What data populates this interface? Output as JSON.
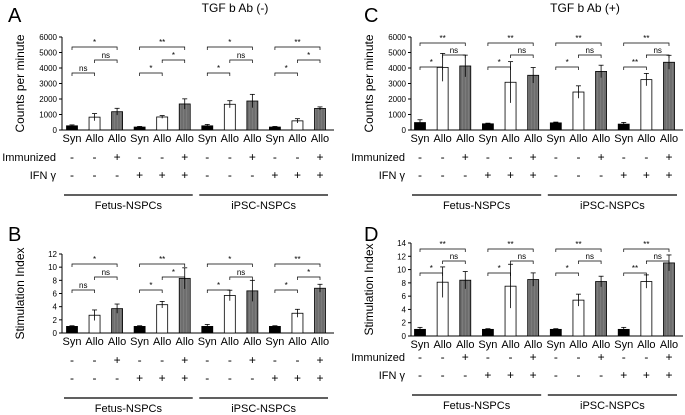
{
  "chart_data": [
    {
      "panel": "A",
      "type": "bar",
      "title": "TGF b Ab (-)",
      "ylabel": "Counts per minute",
      "ylim": [
        0,
        6000
      ],
      "yticks": [
        "0",
        "1000",
        "2000",
        "3000",
        "4000",
        "5000",
        "6000"
      ],
      "categories": [
        "Syn",
        "Allo",
        "Allo",
        "Syn",
        "Allo",
        "Allo",
        "Syn",
        "Allo",
        "Allo",
        "Syn",
        "Allo",
        "Allo"
      ],
      "values": [
        270,
        830,
        1180,
        190,
        840,
        1680,
        270,
        1660,
        1870,
        190,
        590,
        1390
      ],
      "errors": [
        60,
        230,
        220,
        40,
        90,
        330,
        90,
        230,
        430,
        40,
        140,
        100
      ],
      "fills": [
        "black",
        "white",
        "grey",
        "black",
        "white",
        "grey",
        "black",
        "white",
        "grey",
        "black",
        "white",
        "grey"
      ],
      "brackets": [
        {
          "from": 0,
          "to": 1,
          "label": "ns",
          "level": 0
        },
        {
          "from": 1,
          "to": 2,
          "label": "ns",
          "level": 1
        },
        {
          "from": 0,
          "to": 2,
          "label": "*",
          "level": 2
        },
        {
          "from": 3,
          "to": 4,
          "label": "*",
          "level": 0
        },
        {
          "from": 4,
          "to": 5,
          "label": "*",
          "level": 1
        },
        {
          "from": 3,
          "to": 5,
          "label": "**",
          "level": 2
        },
        {
          "from": 6,
          "to": 7,
          "label": "*",
          "level": 0
        },
        {
          "from": 7,
          "to": 8,
          "label": "ns",
          "level": 1
        },
        {
          "from": 6,
          "to": 8,
          "label": "*",
          "level": 2
        },
        {
          "from": 9,
          "to": 10,
          "label": "*",
          "level": 0
        },
        {
          "from": 10,
          "to": 11,
          "label": "*",
          "level": 1
        },
        {
          "from": 9,
          "to": 11,
          "label": "**",
          "level": 2
        }
      ]
    },
    {
      "panel": "C",
      "type": "bar",
      "title": "TGF b Ab (+)",
      "ylabel": "Counts per minute",
      "ylim": [
        0,
        6000
      ],
      "yticks": [
        "0",
        "1000",
        "2000",
        "3000",
        "4000",
        "5000",
        "6000"
      ],
      "categories": [
        "Syn",
        "Allo",
        "Allo",
        "Syn",
        "Allo",
        "Allo",
        "Syn",
        "Allo",
        "Allo",
        "Syn",
        "Allo",
        "Allo"
      ],
      "values": [
        480,
        4040,
        4130,
        400,
        3080,
        3530,
        460,
        2450,
        3780,
        380,
        3250,
        4370
      ],
      "errors": [
        180,
        900,
        700,
        40,
        1330,
        500,
        50,
        400,
        400,
        110,
        400,
        450
      ],
      "fills": [
        "black",
        "white",
        "grey",
        "black",
        "white",
        "grey",
        "black",
        "white",
        "grey",
        "black",
        "white",
        "grey"
      ],
      "brackets": [
        {
          "from": 0,
          "to": 1,
          "label": "*",
          "level": 0
        },
        {
          "from": 1,
          "to": 2,
          "label": "ns",
          "level": 1
        },
        {
          "from": 0,
          "to": 2,
          "label": "**",
          "level": 2
        },
        {
          "from": 3,
          "to": 4,
          "label": "*",
          "level": 0
        },
        {
          "from": 4,
          "to": 5,
          "label": "ns",
          "level": 1
        },
        {
          "from": 3,
          "to": 5,
          "label": "**",
          "level": 2
        },
        {
          "from": 6,
          "to": 7,
          "label": "*",
          "level": 0
        },
        {
          "from": 7,
          "to": 8,
          "label": "ns",
          "level": 1
        },
        {
          "from": 6,
          "to": 8,
          "label": "**",
          "level": 2
        },
        {
          "from": 9,
          "to": 10,
          "label": "**",
          "level": 0
        },
        {
          "from": 10,
          "to": 11,
          "label": "ns",
          "level": 1
        },
        {
          "from": 9,
          "to": 11,
          "label": "**",
          "level": 2
        }
      ]
    },
    {
      "panel": "B",
      "type": "bar",
      "title": "",
      "ylabel": "Stimulation Index",
      "ylim": [
        0,
        12
      ],
      "yticks": [
        "0",
        "2",
        "4",
        "6",
        "8",
        "10",
        "12"
      ],
      "categories": [
        "Syn",
        "Allo",
        "Allo",
        "Syn",
        "Allo",
        "Allo",
        "Syn",
        "Allo",
        "Allo",
        "Syn",
        "Allo",
        "Allo"
      ],
      "values": [
        1,
        2.7,
        3.7,
        1,
        4.3,
        8.3,
        1,
        5.7,
        6.4,
        1,
        3.0,
        6.8
      ],
      "errors": [
        0.1,
        0.8,
        0.7,
        0.1,
        0.5,
        1.6,
        0.3,
        0.8,
        1.6,
        0.1,
        0.6,
        0.6
      ],
      "fills": [
        "black",
        "white",
        "grey",
        "black",
        "white",
        "grey",
        "black",
        "white",
        "grey",
        "black",
        "white",
        "grey"
      ],
      "brackets": [
        {
          "from": 0,
          "to": 1,
          "label": "ns",
          "level": 0
        },
        {
          "from": 1,
          "to": 2,
          "label": "ns",
          "level": 1
        },
        {
          "from": 0,
          "to": 2,
          "label": "*",
          "level": 2
        },
        {
          "from": 3,
          "to": 4,
          "label": "*",
          "level": 0
        },
        {
          "from": 4,
          "to": 5,
          "label": "*",
          "level": 1
        },
        {
          "from": 3,
          "to": 5,
          "label": "**",
          "level": 2
        },
        {
          "from": 6,
          "to": 7,
          "label": "*",
          "level": 0
        },
        {
          "from": 7,
          "to": 8,
          "label": "ns",
          "level": 1
        },
        {
          "from": 6,
          "to": 8,
          "label": "*",
          "level": 2
        },
        {
          "from": 9,
          "to": 10,
          "label": "*",
          "level": 0
        },
        {
          "from": 10,
          "to": 11,
          "label": "*",
          "level": 1
        },
        {
          "from": 9,
          "to": 11,
          "label": "**",
          "level": 2
        }
      ]
    },
    {
      "panel": "D",
      "type": "bar",
      "title": "",
      "ylabel": "Stimulation Index",
      "ylim": [
        0,
        14
      ],
      "yticks": [
        "0",
        "2",
        "4",
        "6",
        "8",
        "10",
        "12",
        "14"
      ],
      "categories": [
        "Syn",
        "Allo",
        "Allo",
        "Syn",
        "Allo",
        "Allo",
        "Syn",
        "Allo",
        "Allo",
        "Syn",
        "Allo",
        "Allo"
      ],
      "values": [
        1,
        8.1,
        8.4,
        1,
        7.5,
        8.5,
        1,
        5.4,
        8.2,
        1,
        8.2,
        11.0
      ],
      "errors": [
        0.3,
        2.3,
        1.3,
        0.1,
        3.3,
        1.0,
        0.1,
        0.9,
        0.8,
        0.3,
        1.0,
        1.2
      ],
      "fills": [
        "black",
        "white",
        "grey",
        "black",
        "white",
        "grey",
        "black",
        "white",
        "grey",
        "black",
        "white",
        "grey"
      ],
      "brackets": [
        {
          "from": 0,
          "to": 1,
          "label": "*",
          "level": 0
        },
        {
          "from": 1,
          "to": 2,
          "label": "ns",
          "level": 1
        },
        {
          "from": 0,
          "to": 2,
          "label": "**",
          "level": 2
        },
        {
          "from": 3,
          "to": 4,
          "label": "*",
          "level": 0
        },
        {
          "from": 4,
          "to": 5,
          "label": "ns",
          "level": 1
        },
        {
          "from": 3,
          "to": 5,
          "label": "**",
          "level": 2
        },
        {
          "from": 6,
          "to": 7,
          "label": "*",
          "level": 0
        },
        {
          "from": 7,
          "to": 8,
          "label": "ns",
          "level": 1
        },
        {
          "from": 6,
          "to": 8,
          "label": "**",
          "level": 2
        },
        {
          "from": 9,
          "to": 10,
          "label": "**",
          "level": 0
        },
        {
          "from": 10,
          "to": 11,
          "label": "ns",
          "level": 1
        },
        {
          "from": 9,
          "to": 11,
          "label": "**",
          "level": 2
        }
      ]
    }
  ],
  "rows": {
    "immunized_label": "Immunized",
    "ifn_label": "IFN γ",
    "immunized": [
      "-",
      "-",
      "+",
      "-",
      "-",
      "+",
      "-",
      "-",
      "+",
      "-",
      "-",
      "+"
    ],
    "ifn": [
      "-",
      "-",
      "-",
      "+",
      "+",
      "+",
      "-",
      "-",
      "-",
      "+",
      "+",
      "+"
    ]
  },
  "groups": [
    "Fetus-NSPCs",
    "iPSC-NSPCs"
  ],
  "colors": {
    "black": "#000000",
    "white": "#ffffff",
    "grey": "#6e6e6e",
    "grey_stripe": "#8a8a8a"
  }
}
